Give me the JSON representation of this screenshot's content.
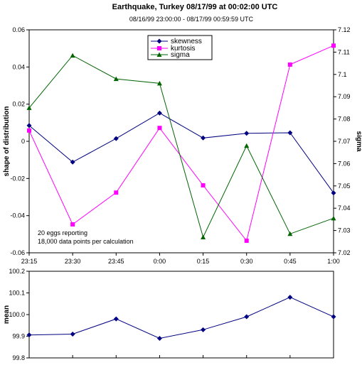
{
  "chart_data": [
    {
      "type": "line",
      "title": "Earthquake, Turkey 08/17/99 at 00:02:00 UTC",
      "subtitle": "08/16/99 23:00:00 - 08/17/99 00:59:59 UTC",
      "categories": [
        "23:15",
        "23:30",
        "23:45",
        "0:00",
        "0:15",
        "0:30",
        "0:45",
        "1:00"
      ],
      "ylabel": "shape of distribution",
      "y2label": "sigma",
      "ylim": [
        -0.06,
        0.06
      ],
      "y2lim": [
        7.02,
        7.12
      ],
      "yticks": [
        "0.06",
        "0.04",
        "0.02",
        "0",
        "-0.02",
        "-0.04",
        "-0.06"
      ],
      "y2ticks": [
        "7.12",
        "7.11",
        "7.1",
        "7.09",
        "7.08",
        "7.07",
        "7.06",
        "7.05",
        "7.04",
        "7.03",
        "7.02"
      ],
      "grid": false,
      "legend_position": "top-center",
      "series": [
        {
          "name": "skewness",
          "axis": "left",
          "color": "#000080",
          "marker": "diamond",
          "values": [
            0.0085,
            -0.0112,
            0.0015,
            0.0152,
            0.0018,
            0.0043,
            0.0046,
            -0.0278
          ]
        },
        {
          "name": "kurtosis",
          "axis": "left",
          "color": "#ff00ff",
          "marker": "square",
          "values": [
            0.0058,
            -0.0447,
            -0.0276,
            0.0072,
            -0.0237,
            -0.0535,
            0.0413,
            0.0515
          ]
        },
        {
          "name": "sigma",
          "axis": "right",
          "color": "#006400",
          "marker": "triangle",
          "values": [
            7.085,
            7.1085,
            7.098,
            7.096,
            7.027,
            7.068,
            7.0285,
            7.0355
          ]
        }
      ],
      "annotations": [
        "20 eggs reporting",
        "18,000 data points per calculation"
      ]
    },
    {
      "type": "line",
      "categories": [
        "23:15",
        "23:30",
        "23:45",
        "0:00",
        "0:15",
        "0:30",
        "0:45",
        "1:00"
      ],
      "ylabel": "mean",
      "ylim": [
        99.8,
        100.2
      ],
      "yticks": [
        "100.2",
        "100.1",
        "100.0",
        "99.9",
        "99.8"
      ],
      "grid": false,
      "series": [
        {
          "name": "mean",
          "color": "#000080",
          "marker": "diamond",
          "values": [
            99.906,
            99.91,
            99.98,
            99.89,
            99.93,
            99.99,
            100.08,
            99.99
          ]
        }
      ]
    }
  ]
}
